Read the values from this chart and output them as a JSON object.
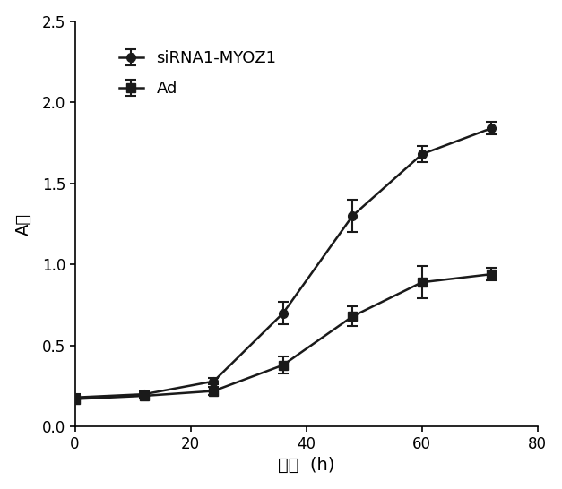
{
  "x": [
    0,
    12,
    24,
    36,
    48,
    60,
    72
  ],
  "sirna_y": [
    0.18,
    0.2,
    0.28,
    0.7,
    1.3,
    1.68,
    1.84
  ],
  "sirna_yerr": [
    0.02,
    0.02,
    0.02,
    0.07,
    0.1,
    0.05,
    0.04
  ],
  "ad_y": [
    0.17,
    0.19,
    0.22,
    0.38,
    0.68,
    0.89,
    0.94
  ],
  "ad_yerr": [
    0.01,
    0.015,
    0.025,
    0.05,
    0.06,
    0.1,
    0.04
  ],
  "sirna_label": "siRNA1-MYOZ1",
  "ad_label": "Ad",
  "ylabel": "A值",
  "xlabel_chinese": "时间",
  "xlabel_suffix": "  (h)",
  "xlim": [
    0,
    80
  ],
  "ylim": [
    0,
    2.5
  ],
  "yticks": [
    0.0,
    0.5,
    1.0,
    1.5,
    2.0,
    2.5
  ],
  "xticks": [
    0,
    20,
    40,
    60,
    80
  ],
  "line_color": "#1a1a1a",
  "background_color": "#ffffff",
  "markersize": 7,
  "linewidth": 1.8,
  "capsize": 4,
  "legend_fontsize": 13,
  "axis_label_fontsize": 14,
  "tick_fontsize": 12
}
